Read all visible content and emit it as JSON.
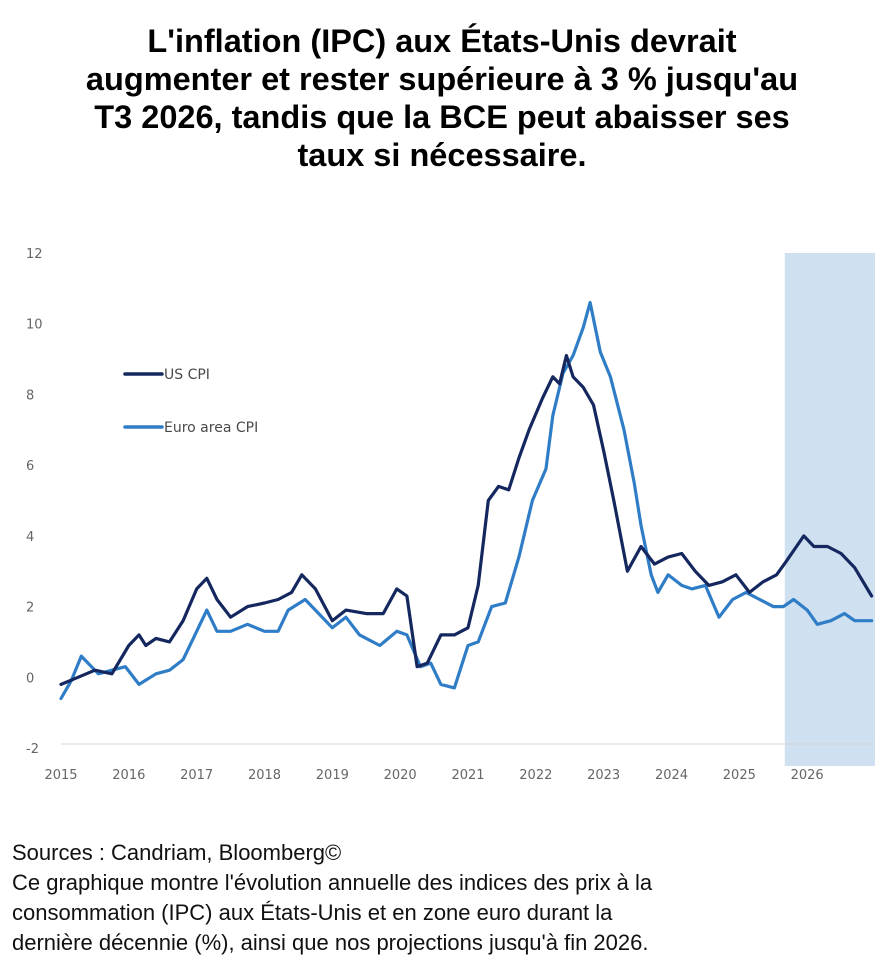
{
  "title_lines": [
    "L'inflation (IPC) aux États-Unis devrait",
    "augmenter et rester supérieure à 3 % jusqu'au",
    "T3 2026, tandis que la BCE peut abaisser ses",
    "taux si nécessaire."
  ],
  "footer": {
    "sources": "Sources : Candriam, Bloomberg©",
    "lines": [
      "Ce graphique montre l'évolution annuelle des indices des prix à la",
      "consommation (IPC) aux États-Unis et en zone euro durant la",
      "dernière décennie (%), ainsi que nos projections jusqu'à fin 2026."
    ]
  },
  "chart_data": {
    "type": "line",
    "y_ticks": [
      "12",
      "10",
      "8",
      "6",
      "4",
      "2",
      "0",
      "-2"
    ],
    "ylim": [
      -2,
      12
    ],
    "x_ticks": [
      "2015",
      "2016",
      "2017",
      "2018",
      "2019",
      "2020",
      "2021",
      "2022",
      "2023",
      "2024",
      "2025",
      "2026"
    ],
    "xlim": [
      2015.0,
      2027.0
    ],
    "projection_start": 2025.67,
    "projection_color": "#cfe0f0",
    "series": [
      {
        "name": "US CPI",
        "color": "#14285f",
        "points": [
          [
            2015.0,
            -0.2
          ],
          [
            2015.25,
            0.0
          ],
          [
            2015.5,
            0.2
          ],
          [
            2015.75,
            0.1
          ],
          [
            2016.0,
            0.9
          ],
          [
            2016.15,
            1.2
          ],
          [
            2016.25,
            0.9
          ],
          [
            2016.4,
            1.1
          ],
          [
            2016.6,
            1.0
          ],
          [
            2016.8,
            1.6
          ],
          [
            2017.0,
            2.5
          ],
          [
            2017.15,
            2.8
          ],
          [
            2017.3,
            2.2
          ],
          [
            2017.5,
            1.7
          ],
          [
            2017.75,
            2.0
          ],
          [
            2018.0,
            2.1
          ],
          [
            2018.2,
            2.2
          ],
          [
            2018.4,
            2.4
          ],
          [
            2018.55,
            2.9
          ],
          [
            2018.75,
            2.5
          ],
          [
            2019.0,
            1.6
          ],
          [
            2019.2,
            1.9
          ],
          [
            2019.5,
            1.8
          ],
          [
            2019.75,
            1.8
          ],
          [
            2019.95,
            2.5
          ],
          [
            2020.1,
            2.3
          ],
          [
            2020.25,
            0.3
          ],
          [
            2020.4,
            0.4
          ],
          [
            2020.6,
            1.2
          ],
          [
            2020.8,
            1.2
          ],
          [
            2021.0,
            1.4
          ],
          [
            2021.15,
            2.6
          ],
          [
            2021.3,
            5.0
          ],
          [
            2021.45,
            5.4
          ],
          [
            2021.6,
            5.3
          ],
          [
            2021.75,
            6.2
          ],
          [
            2021.9,
            7.0
          ],
          [
            2022.1,
            7.9
          ],
          [
            2022.25,
            8.5
          ],
          [
            2022.35,
            8.3
          ],
          [
            2022.45,
            9.1
          ],
          [
            2022.55,
            8.5
          ],
          [
            2022.7,
            8.2
          ],
          [
            2022.85,
            7.7
          ],
          [
            2023.0,
            6.4
          ],
          [
            2023.15,
            5.0
          ],
          [
            2023.35,
            3.0
          ],
          [
            2023.55,
            3.7
          ],
          [
            2023.75,
            3.2
          ],
          [
            2023.95,
            3.4
          ],
          [
            2024.15,
            3.5
          ],
          [
            2024.35,
            3.0
          ],
          [
            2024.55,
            2.6
          ],
          [
            2024.75,
            2.7
          ],
          [
            2024.95,
            2.9
          ],
          [
            2025.15,
            2.4
          ],
          [
            2025.35,
            2.7
          ],
          [
            2025.55,
            2.9
          ],
          [
            2025.7,
            3.3
          ],
          [
            2025.95,
            4.0
          ],
          [
            2026.1,
            3.7
          ],
          [
            2026.3,
            3.7
          ],
          [
            2026.5,
            3.5
          ],
          [
            2026.7,
            3.1
          ],
          [
            2026.95,
            2.3
          ]
        ]
      },
      {
        "name": "Euro area CPI",
        "color": "#2f7dc6",
        "points": [
          [
            2015.0,
            -0.6
          ],
          [
            2015.15,
            -0.1
          ],
          [
            2015.3,
            0.6
          ],
          [
            2015.55,
            0.1
          ],
          [
            2015.75,
            0.2
          ],
          [
            2015.95,
            0.3
          ],
          [
            2016.15,
            -0.2
          ],
          [
            2016.4,
            0.1
          ],
          [
            2016.6,
            0.2
          ],
          [
            2016.8,
            0.5
          ],
          [
            2016.95,
            1.1
          ],
          [
            2017.15,
            1.9
          ],
          [
            2017.3,
            1.3
          ],
          [
            2017.5,
            1.3
          ],
          [
            2017.75,
            1.5
          ],
          [
            2018.0,
            1.3
          ],
          [
            2018.2,
            1.3
          ],
          [
            2018.35,
            1.9
          ],
          [
            2018.6,
            2.2
          ],
          [
            2018.75,
            1.9
          ],
          [
            2019.0,
            1.4
          ],
          [
            2019.2,
            1.7
          ],
          [
            2019.4,
            1.2
          ],
          [
            2019.7,
            0.9
          ],
          [
            2019.95,
            1.3
          ],
          [
            2020.1,
            1.2
          ],
          [
            2020.3,
            0.3
          ],
          [
            2020.45,
            0.4
          ],
          [
            2020.6,
            -0.2
          ],
          [
            2020.8,
            -0.3
          ],
          [
            2021.0,
            0.9
          ],
          [
            2021.15,
            1.0
          ],
          [
            2021.35,
            2.0
          ],
          [
            2021.55,
            2.1
          ],
          [
            2021.75,
            3.4
          ],
          [
            2021.95,
            5.0
          ],
          [
            2022.15,
            5.9
          ],
          [
            2022.25,
            7.4
          ],
          [
            2022.4,
            8.6
          ],
          [
            2022.55,
            9.1
          ],
          [
            2022.7,
            9.9
          ],
          [
            2022.8,
            10.6
          ],
          [
            2022.95,
            9.2
          ],
          [
            2023.1,
            8.5
          ],
          [
            2023.3,
            7.0
          ],
          [
            2023.45,
            5.5
          ],
          [
            2023.55,
            4.3
          ],
          [
            2023.7,
            2.9
          ],
          [
            2023.8,
            2.4
          ],
          [
            2023.95,
            2.9
          ],
          [
            2024.15,
            2.6
          ],
          [
            2024.3,
            2.5
          ],
          [
            2024.5,
            2.6
          ],
          [
            2024.7,
            1.7
          ],
          [
            2024.9,
            2.2
          ],
          [
            2025.1,
            2.4
          ],
          [
            2025.3,
            2.2
          ],
          [
            2025.5,
            2.0
          ],
          [
            2025.65,
            2.0
          ],
          [
            2025.8,
            2.2
          ],
          [
            2026.0,
            1.9
          ],
          [
            2026.15,
            1.5
          ],
          [
            2026.35,
            1.6
          ],
          [
            2026.55,
            1.8
          ],
          [
            2026.7,
            1.6
          ],
          [
            2026.95,
            1.6
          ]
        ]
      }
    ]
  }
}
